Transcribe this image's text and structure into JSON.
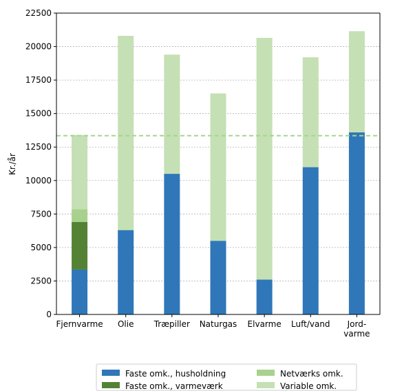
{
  "chart_data": {
    "type": "bar",
    "stacked": true,
    "categories": [
      "Fjernvarme",
      "Olie",
      "Træpiller",
      "Naturgas",
      "Elvarme",
      "Luft/vand",
      "Jord-\nvarme"
    ],
    "ylabel": "Kr./år",
    "ylim": [
      0,
      22500
    ],
    "yticks": [
      0,
      2500,
      5000,
      7500,
      10000,
      12500,
      15000,
      17500,
      20000,
      22500
    ],
    "grid": "y-dotted",
    "reference_line": {
      "y": 13350,
      "color": "#a5d68c",
      "style": "dashed"
    },
    "legend_position": "bottom",
    "series": [
      {
        "name": "Faste omk., husholdning",
        "color": "#2f77b8",
        "values": [
          3350,
          6300,
          10500,
          5500,
          2600,
          11000,
          13600
        ]
      },
      {
        "name": "Faste omk., varmeværk",
        "color": "#548235",
        "values": [
          3550,
          0,
          0,
          0,
          0,
          0,
          0
        ]
      },
      {
        "name": "Netværks omk.",
        "color": "#a9d18e",
        "values": [
          950,
          0,
          0,
          0,
          0,
          0,
          0
        ]
      },
      {
        "name": "Variable omk.",
        "color": "#c5e0b4",
        "values": [
          5550,
          14500,
          8900,
          11000,
          18050,
          8200,
          7550
        ]
      }
    ]
  }
}
